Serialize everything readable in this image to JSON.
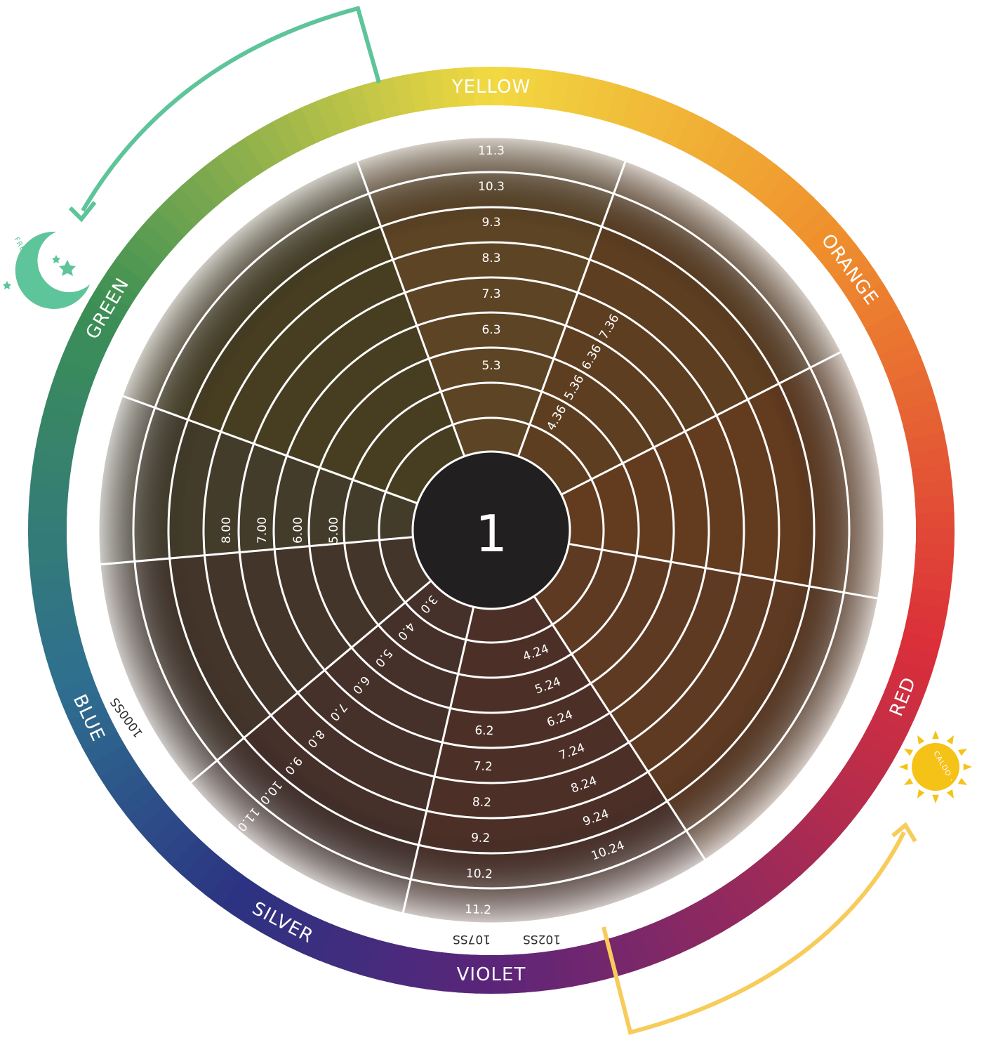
{
  "center_label": "1",
  "color_ring": [
    "YELLOW",
    "ORANGE",
    "RED",
    "VIOLET",
    "SILVER",
    "BLUE",
    "GREEN"
  ],
  "ring_colors": {
    "yellow": "#f2d941",
    "orange": "#ef8f2d",
    "red": "#db2f3a",
    "violet": "#5b2579",
    "silver": "#2c3382",
    "blue": "#2e6f8f",
    "green": "#3c8f55"
  },
  "cold_badge": {
    "label": "FREDDO - COLD",
    "color": "#5ec49a"
  },
  "warm_badge": {
    "label": "CALDO - WARM",
    "color": "#f5c218"
  },
  "arrow_colors": {
    "cold": "#5ec49a",
    "warm": "#f8cc5a"
  },
  "segments": {
    "ash_green": [
      "5.3",
      "6.3",
      "7.3",
      "8.3",
      "9.3",
      "10.3",
      "11.3"
    ],
    "copper": [
      "4.36",
      "5.36",
      "6.36",
      "7.36"
    ],
    "red_violet": [
      "4.24",
      "5.24",
      "6.24",
      "7.24",
      "8.24",
      "9.24",
      "10.24"
    ],
    "pearl": [
      "6.2",
      "7.2",
      "8.2",
      "9.2",
      "10.2",
      "11.2"
    ],
    "natural_ash": [
      "3.0",
      "4.0",
      "5.0",
      "6.0",
      "7.0",
      "8.0",
      "9.0",
      "10.0",
      "11.0"
    ],
    "natural": [
      "5.00",
      "6.00",
      "7.00",
      "8.00"
    ]
  },
  "special_labels": [
    "1000SS",
    "107SS",
    "102SS"
  ]
}
